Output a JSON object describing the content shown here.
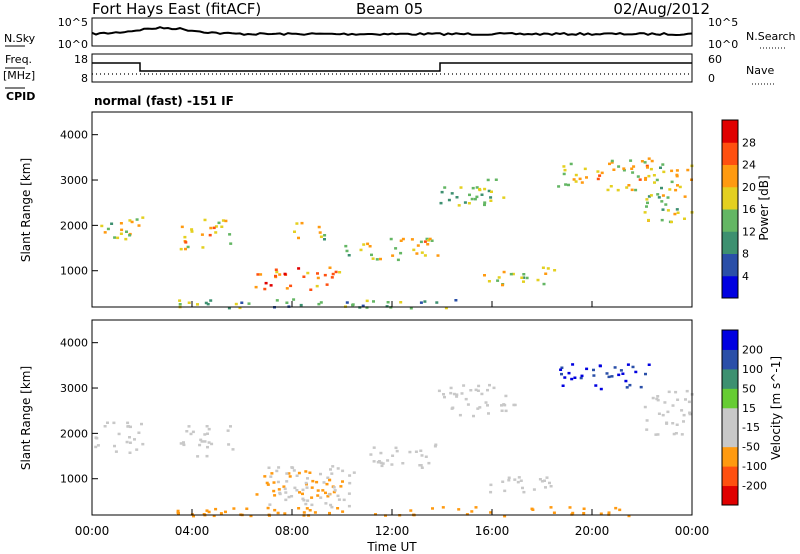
{
  "header": {
    "title": "Fort Hays East (fitACF)",
    "beam": "Beam 05",
    "date": "02/Aug/2012"
  },
  "noise_panel": {
    "left_label": "N.Sky",
    "left_ticks": [
      "10^5",
      "10^0"
    ],
    "right_ticks": [
      "10^5",
      "10^0"
    ],
    "right_label": "N.Search"
  },
  "freq_panel": {
    "left_label_line1": "Freq.",
    "left_label_line2": "[MHz]",
    "left_ticks": [
      "18",
      "8"
    ],
    "right_ticks": [
      "60",
      "0"
    ],
    "right_label": "Nave",
    "cpid_label": "CPID",
    "cpid_text": "normal (fast) -151 IF"
  },
  "colors": {
    "power_scale": [
      "#0000e0",
      "#2a4fa8",
      "#3d9070",
      "#64b664",
      "#e4d020",
      "#ff9a10",
      "#ff5010",
      "#e00000"
    ],
    "velocity_scale": [
      "#e00000",
      "#ff5010",
      "#ff9a10",
      "#c8c8c8",
      "#c8c8c8",
      "#66cc33",
      "#3d9070",
      "#2a4fa8",
      "#0000e0"
    ]
  },
  "chart_data": [
    {
      "type": "heatmap",
      "name": "power",
      "ylabel": "Slant Range [km]",
      "yticks": [
        "1000",
        "2000",
        "3000",
        "4000"
      ],
      "ylim": [
        200,
        4500
      ],
      "xlim": [
        0,
        24
      ],
      "colorbar_label": "Power [dB]",
      "colorbar_ticks": [
        "4",
        "8",
        "12",
        "16",
        "20",
        "24",
        "28"
      ],
      "features": [
        {
          "t": [
            0.0,
            2.0
          ],
          "r": [
            1650,
            2200
          ],
          "level": 0.55
        },
        {
          "t": [
            3.5,
            5.6
          ],
          "r": [
            1500,
            2150
          ],
          "level": 0.65
        },
        {
          "t": [
            6.5,
            10.0
          ],
          "r": [
            600,
            1100
          ],
          "level": 0.75
        },
        {
          "t": [
            8.0,
            9.3
          ],
          "r": [
            1700,
            2100
          ],
          "level": 0.5
        },
        {
          "t": [
            10.0,
            11.0
          ],
          "r": [
            1350,
            1700
          ],
          "level": 0.5
        },
        {
          "t": [
            11.0,
            13.8
          ],
          "r": [
            1250,
            1800
          ],
          "level": 0.6
        },
        {
          "t": [
            13.8,
            16.5
          ],
          "r": [
            2450,
            3100
          ],
          "level": 0.4
        },
        {
          "t": [
            15.5,
            18.5
          ],
          "r": [
            700,
            1100
          ],
          "level": 0.55
        },
        {
          "t": [
            18.6,
            22.5
          ],
          "r": [
            2800,
            3500
          ],
          "level": 0.6
        },
        {
          "t": [
            22.0,
            24.0
          ],
          "r": [
            2100,
            3500
          ],
          "level": 0.55
        },
        {
          "t": [
            3.0,
            15.0
          ],
          "r": [
            200,
            400
          ],
          "level": 0.35
        }
      ]
    },
    {
      "type": "heatmap",
      "name": "velocity",
      "xlabel": "Time UT",
      "ylabel": "Slant Range [km]",
      "yticks": [
        "1000",
        "2000",
        "3000",
        "4000"
      ],
      "ylim": [
        200,
        4500
      ],
      "xticks": [
        "00:00",
        "04:00",
        "08:00",
        "12:00",
        "16:00",
        "20:00",
        "00:00"
      ],
      "xlim": [
        0,
        24
      ],
      "colorbar_label": "Velocity [m s^-1]",
      "colorbar_ticks": [
        "-200",
        "-100",
        "-50",
        "-15",
        "15",
        "50",
        "100",
        "200"
      ],
      "features": [
        {
          "t": [
            0.0,
            2.0
          ],
          "r": [
            1600,
            2300
          ],
          "velocity": 0
        },
        {
          "t": [
            3.5,
            5.6
          ],
          "r": [
            1500,
            2200
          ],
          "velocity": 0
        },
        {
          "t": [
            6.5,
            10.0
          ],
          "r": [
            600,
            1200
          ],
          "velocity": -60
        },
        {
          "t": [
            7.0,
            10.5
          ],
          "r": [
            400,
            1300
          ],
          "velocity": 0
        },
        {
          "t": [
            11.0,
            13.8
          ],
          "r": [
            1250,
            1800
          ],
          "velocity": 0
        },
        {
          "t": [
            13.8,
            17.0
          ],
          "r": [
            2400,
            3100
          ],
          "velocity": 0
        },
        {
          "t": [
            15.5,
            18.5
          ],
          "r": [
            700,
            1100
          ],
          "velocity": 0
        },
        {
          "t": [
            18.6,
            22.3
          ],
          "r": [
            3000,
            3550
          ],
          "velocity": 200
        },
        {
          "t": [
            22.0,
            24.0
          ],
          "r": [
            2000,
            3000
          ],
          "velocity": 0
        },
        {
          "t": [
            3.0,
            22.0
          ],
          "r": [
            200,
            400
          ],
          "velocity": -80
        }
      ]
    }
  ]
}
